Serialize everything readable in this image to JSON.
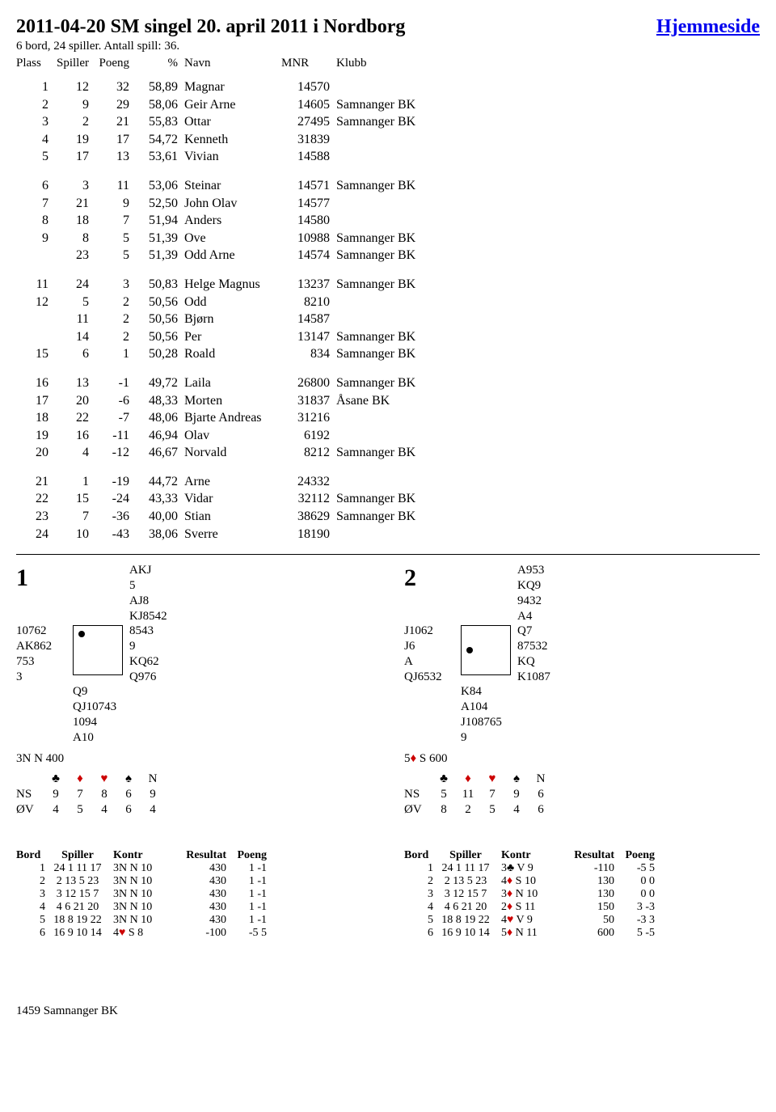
{
  "header": {
    "title": "2011-04-20  SM singel 20. april 2011 i Nordborg",
    "homelink": "Hjemmeside",
    "subtitle": "6 bord, 24 spiller. Antall spill: 36.",
    "columns": [
      "Plass",
      "Spiller",
      "Poeng",
      "%",
      "Navn",
      "MNR",
      "Klubb"
    ]
  },
  "standings": [
    [
      {
        "plass": "1",
        "spiller": "12",
        "poeng": "32",
        "pct": "58,89",
        "navn": "Magnar",
        "mnr": "14570",
        "klubb": ""
      },
      {
        "plass": "2",
        "spiller": "9",
        "poeng": "29",
        "pct": "58,06",
        "navn": "Geir Arne",
        "mnr": "14605",
        "klubb": "Samnanger BK"
      },
      {
        "plass": "3",
        "spiller": "2",
        "poeng": "21",
        "pct": "55,83",
        "navn": "Ottar",
        "mnr": "27495",
        "klubb": "Samnanger BK"
      },
      {
        "plass": "4",
        "spiller": "19",
        "poeng": "17",
        "pct": "54,72",
        "navn": "Kenneth",
        "mnr": "31839",
        "klubb": ""
      },
      {
        "plass": "5",
        "spiller": "17",
        "poeng": "13",
        "pct": "53,61",
        "navn": "Vivian",
        "mnr": "14588",
        "klubb": ""
      }
    ],
    [
      {
        "plass": "6",
        "spiller": "3",
        "poeng": "11",
        "pct": "53,06",
        "navn": "Steinar",
        "mnr": "14571",
        "klubb": "Samnanger BK"
      },
      {
        "plass": "7",
        "spiller": "21",
        "poeng": "9",
        "pct": "52,50",
        "navn": "John Olav",
        "mnr": "14577",
        "klubb": ""
      },
      {
        "plass": "8",
        "spiller": "18",
        "poeng": "7",
        "pct": "51,94",
        "navn": "Anders",
        "mnr": "14580",
        "klubb": ""
      },
      {
        "plass": "9",
        "spiller": "8",
        "poeng": "5",
        "pct": "51,39",
        "navn": "Ove",
        "mnr": "10988",
        "klubb": "Samnanger BK"
      },
      {
        "plass": "",
        "spiller": "23",
        "poeng": "5",
        "pct": "51,39",
        "navn": "Odd Arne",
        "mnr": "14574",
        "klubb": "Samnanger BK"
      }
    ],
    [
      {
        "plass": "11",
        "spiller": "24",
        "poeng": "3",
        "pct": "50,83",
        "navn": "Helge Magnus",
        "mnr": "13237",
        "klubb": "Samnanger BK"
      },
      {
        "plass": "12",
        "spiller": "5",
        "poeng": "2",
        "pct": "50,56",
        "navn": "Odd",
        "mnr": "8210",
        "klubb": ""
      },
      {
        "plass": "",
        "spiller": "11",
        "poeng": "2",
        "pct": "50,56",
        "navn": "Bjørn",
        "mnr": "14587",
        "klubb": ""
      },
      {
        "plass": "",
        "spiller": "14",
        "poeng": "2",
        "pct": "50,56",
        "navn": "Per",
        "mnr": "13147",
        "klubb": "Samnanger BK"
      },
      {
        "plass": "15",
        "spiller": "6",
        "poeng": "1",
        "pct": "50,28",
        "navn": "Roald",
        "mnr": "834",
        "klubb": "Samnanger BK"
      }
    ],
    [
      {
        "plass": "16",
        "spiller": "13",
        "poeng": "-1",
        "pct": "49,72",
        "navn": "Laila",
        "mnr": "26800",
        "klubb": "Samnanger BK"
      },
      {
        "plass": "17",
        "spiller": "20",
        "poeng": "-6",
        "pct": "48,33",
        "navn": "Morten",
        "mnr": "31837",
        "klubb": "Åsane BK"
      },
      {
        "plass": "18",
        "spiller": "22",
        "poeng": "-7",
        "pct": "48,06",
        "navn": "Bjarte Andreas",
        "mnr": "31216",
        "klubb": ""
      },
      {
        "plass": "19",
        "spiller": "16",
        "poeng": "-11",
        "pct": "46,94",
        "navn": "Olav",
        "mnr": "6192",
        "klubb": ""
      },
      {
        "plass": "20",
        "spiller": "4",
        "poeng": "-12",
        "pct": "46,67",
        "navn": "Norvald",
        "mnr": "8212",
        "klubb": "Samnanger BK"
      }
    ],
    [
      {
        "plass": "21",
        "spiller": "1",
        "poeng": "-19",
        "pct": "44,72",
        "navn": "Arne",
        "mnr": "24332",
        "klubb": ""
      },
      {
        "plass": "22",
        "spiller": "15",
        "poeng": "-24",
        "pct": "43,33",
        "navn": "Vidar",
        "mnr": "32112",
        "klubb": "Samnanger BK"
      },
      {
        "plass": "23",
        "spiller": "7",
        "poeng": "-36",
        "pct": "40,00",
        "navn": "Stian",
        "mnr": "38629",
        "klubb": "Samnanger BK"
      },
      {
        "plass": "24",
        "spiller": "10",
        "poeng": "-43",
        "pct": "38,06",
        "navn": "Sverre",
        "mnr": "18190",
        "klubb": ""
      }
    ]
  ],
  "boards": [
    {
      "num": "1",
      "n": [
        "AKJ",
        "5",
        "AJ8",
        "KJ8542"
      ],
      "w": [
        "10762",
        "AK862",
        "753",
        "3"
      ],
      "e": [
        "8543",
        "9",
        "KQ62",
        "Q976"
      ],
      "s": [
        "Q9",
        "QJ10743",
        "1094",
        "A10"
      ],
      "pip": "tl",
      "contract_plain": "3N N 400",
      "contract_suit": "",
      "suits": [
        "♣",
        "♦",
        "♥",
        "♠",
        "N"
      ],
      "suit_colors": [
        "#000",
        "#cc0000",
        "#cc0000",
        "#000",
        "#000"
      ],
      "ns": [
        "9",
        "7",
        "8",
        "6",
        "9"
      ],
      "ov": [
        "4",
        "5",
        "4",
        "6",
        "4"
      ]
    },
    {
      "num": "2",
      "n": [
        "A953",
        "KQ9",
        "9432",
        "A4"
      ],
      "w": [
        "J1062",
        "J6",
        "A",
        "QJ6532"
      ],
      "e": [
        "Q7",
        "87532",
        "KQ",
        "K1087"
      ],
      "s": [
        "K84",
        "A104",
        "J108765",
        "9"
      ],
      "pip": "ml",
      "contract_plain": "5",
      "contract_suit": "♦",
      "contract_suit_color": "#cc0000",
      "contract_after": " S 600",
      "suits": [
        "♣",
        "♦",
        "♥",
        "♠",
        "N"
      ],
      "suit_colors": [
        "#000",
        "#cc0000",
        "#cc0000",
        "#000",
        "#000"
      ],
      "ns": [
        "5",
        "11",
        "7",
        "9",
        "6"
      ],
      "ov": [
        "8",
        "2",
        "5",
        "4",
        "6"
      ]
    }
  ],
  "results_header": [
    "Bord",
    "Spiller",
    "Kontr",
    "Resultat",
    "Poeng"
  ],
  "results": [
    [
      {
        "bord": "1",
        "sp": "24  1 11 17",
        "kontr": "3N  N 10",
        "res": "430",
        "poeng": "1 -1"
      },
      {
        "bord": "2",
        "sp": "2 13  5 23",
        "kontr": "3N  N 10",
        "res": "430",
        "poeng": "1 -1"
      },
      {
        "bord": "3",
        "sp": "3 12 15  7",
        "kontr": "3N  N 10",
        "res": "430",
        "poeng": "1 -1"
      },
      {
        "bord": "4",
        "sp": "4  6 21 20",
        "kontr": "3N  N 10",
        "res": "430",
        "poeng": "1 -1"
      },
      {
        "bord": "5",
        "sp": "18  8 19 22",
        "kontr": "3N  N 10",
        "res": "430",
        "poeng": "1 -1"
      },
      {
        "bord": "6",
        "sp": "16  9 10 14",
        "kontr": "4♥  S  8",
        "kontr_suit": "♥",
        "kontr_color": "#cc0000",
        "res": "-100",
        "poeng": "-5  5"
      }
    ],
    [
      {
        "bord": "1",
        "sp": "24  1 11 17",
        "kontr": "3♣  V  9",
        "kontr_suit": "♣",
        "kontr_color": "#000",
        "res": "-110",
        "poeng": "-5  5"
      },
      {
        "bord": "2",
        "sp": "2 13  5 23",
        "kontr": "4♦  S 10",
        "kontr_suit": "♦",
        "kontr_color": "#cc0000",
        "res": "130",
        "poeng": "0  0"
      },
      {
        "bord": "3",
        "sp": "3 12 15  7",
        "kontr": "3♦  N 10",
        "kontr_suit": "♦",
        "kontr_color": "#cc0000",
        "res": "130",
        "poeng": "0  0"
      },
      {
        "bord": "4",
        "sp": "4  6 21 20",
        "kontr": "2♦  S 11",
        "kontr_suit": "♦",
        "kontr_color": "#cc0000",
        "res": "150",
        "poeng": "3 -3"
      },
      {
        "bord": "5",
        "sp": "18  8 19 22",
        "kontr": "4♥  V  9",
        "kontr_suit": "♥",
        "kontr_color": "#cc0000",
        "res": "50",
        "poeng": "-3  3"
      },
      {
        "bord": "6",
        "sp": "16  9 10 14",
        "kontr": "5♦  N 11",
        "kontr_suit": "♦",
        "kontr_color": "#cc0000",
        "res": "600",
        "poeng": "5 -5"
      }
    ]
  ],
  "footer": "1459 Samnanger BK"
}
